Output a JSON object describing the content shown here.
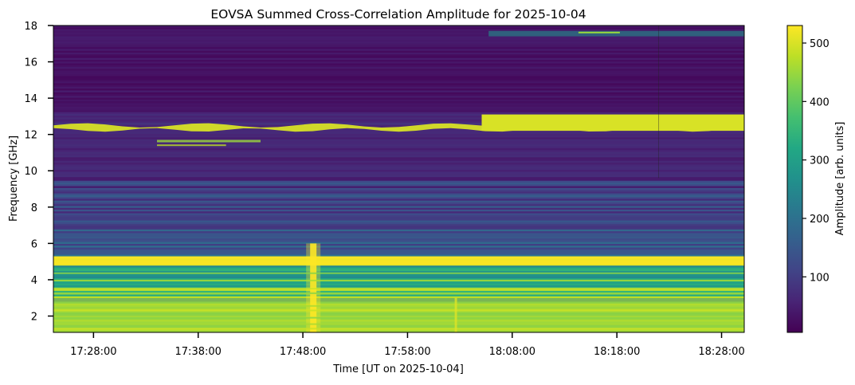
{
  "chart_data": {
    "type": "heatmap",
    "title": "EOVSA Summed Cross-Correlation Amplitude for 2025-10-04",
    "xlabel": "Time [UT on 2025-10-04]",
    "ylabel": "Frequency [GHz]",
    "x_ticks": [
      "17:28:00",
      "17:38:00",
      "17:48:00",
      "17:58:00",
      "18:08:00",
      "18:18:00",
      "18:28:00"
    ],
    "xlim": [
      "17:24:10",
      "18:30:10"
    ],
    "y_ticks": [
      2,
      4,
      6,
      8,
      10,
      12,
      14,
      16,
      18
    ],
    "ylim": [
      1.1,
      18.0
    ],
    "colorbar": {
      "label": "Amplitude [arb. units]",
      "ticks": [
        100,
        200,
        300,
        400,
        500
      ],
      "range": [
        5,
        530
      ],
      "colormap": "viridis"
    },
    "features": [
      {
        "desc": "strong band",
        "freq_range": [
          4.9,
          5.3
        ],
        "level": 520
      },
      {
        "desc": "low-frequency bright region",
        "freq_range": [
          1.1,
          3.0
        ],
        "level": 480
      },
      {
        "desc": "drifting band",
        "freq_range": [
          12.2,
          13.1
        ],
        "level": 500
      },
      {
        "desc": "burst",
        "time": "17:49:00",
        "freq_range": [
          1.1,
          6.0
        ],
        "level": 530
      },
      {
        "desc": "upper band",
        "freq_range": [
          17.4,
          17.7
        ],
        "level": 450
      }
    ]
  }
}
